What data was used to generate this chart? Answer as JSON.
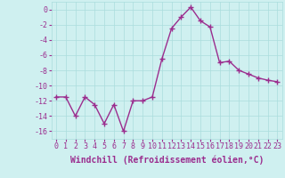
{
  "x": [
    0,
    1,
    2,
    3,
    4,
    5,
    6,
    7,
    8,
    9,
    10,
    11,
    12,
    13,
    14,
    15,
    16,
    17,
    18,
    19,
    20,
    21,
    22,
    23
  ],
  "y": [
    -11.5,
    -11.5,
    -14.0,
    -11.5,
    -12.5,
    -15.0,
    -12.5,
    -16.0,
    -12.0,
    -12.0,
    -11.5,
    -6.5,
    -2.5,
    -1.0,
    0.3,
    -1.5,
    -2.3,
    -7.0,
    -6.8,
    -8.0,
    -8.5,
    -9.0,
    -9.3,
    -9.5
  ],
  "line_color": "#9b2d8e",
  "marker": "+",
  "markersize": 4,
  "linewidth": 1.0,
  "background_color": "#cff0f0",
  "grid_color": "#aadddd",
  "xlabel": "Windchill (Refroidissement éolien,°C)",
  "xlabel_fontsize": 7,
  "xlim": [
    -0.5,
    23.5
  ],
  "ylim": [
    -17,
    1
  ],
  "yticks": [
    0,
    -2,
    -4,
    -6,
    -8,
    -10,
    -12,
    -14,
    -16
  ],
  "xticks": [
    0,
    1,
    2,
    3,
    4,
    5,
    6,
    7,
    8,
    9,
    10,
    11,
    12,
    13,
    14,
    15,
    16,
    17,
    18,
    19,
    20,
    21,
    22,
    23
  ],
  "tick_fontsize": 6,
  "tick_color": "#9b2d8e"
}
